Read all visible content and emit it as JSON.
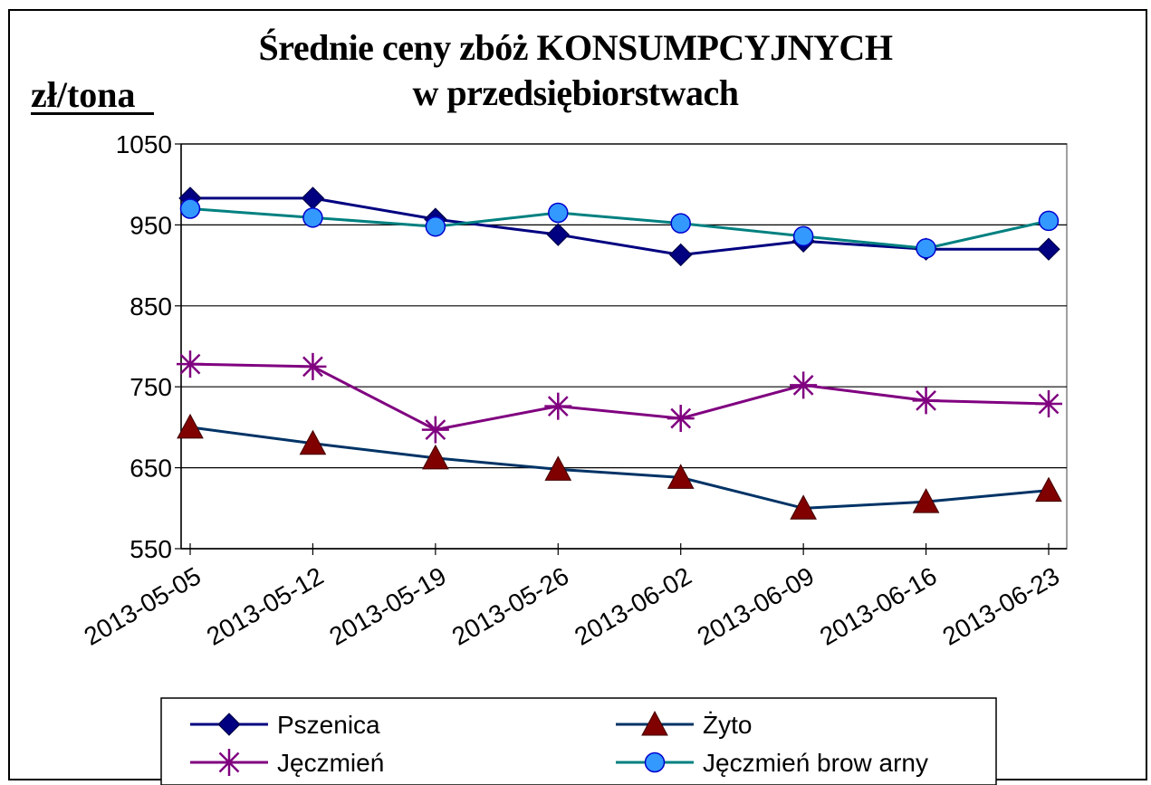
{
  "chart_data": {
    "type": "line",
    "title_lines": [
      "Średnie ceny zbóż KONSUMPCYJNYCH",
      "w przedsiębiorstwach"
    ],
    "ylabel": "zł/tona",
    "xlabel": "",
    "categories": [
      "2013-05-05",
      "2013-05-12",
      "2013-05-19",
      "2013-05-26",
      "2013-06-02",
      "2013-06-09",
      "2013-06-16",
      "2013-06-23"
    ],
    "ylim": [
      550,
      1050
    ],
    "yticks": [
      550,
      650,
      750,
      850,
      950,
      1050
    ],
    "grid": "horizontal",
    "legend_position": "bottom",
    "series": [
      {
        "name": "Pszenica",
        "values": [
          983,
          983,
          957,
          938,
          913,
          930,
          920,
          920
        ],
        "color": "#000080",
        "marker": "diamond",
        "marker_color": "#000080"
      },
      {
        "name": "Żyto",
        "values": [
          700,
          680,
          662,
          648,
          638,
          600,
          608,
          622
        ],
        "color": "#003366",
        "marker": "triangle",
        "marker_color": "#800000"
      },
      {
        "name": "Jęczmień",
        "values": [
          778,
          775,
          697,
          726,
          711,
          752,
          733,
          729
        ],
        "color": "#800080",
        "marker": "asterisk",
        "marker_color": "#800080"
      },
      {
        "name": "Jęczmień brow arny",
        "values": [
          970,
          959,
          948,
          965,
          952,
          936,
          921,
          955
        ],
        "color": "#008080",
        "marker": "circle",
        "marker_color": "#3399ff"
      }
    ]
  }
}
